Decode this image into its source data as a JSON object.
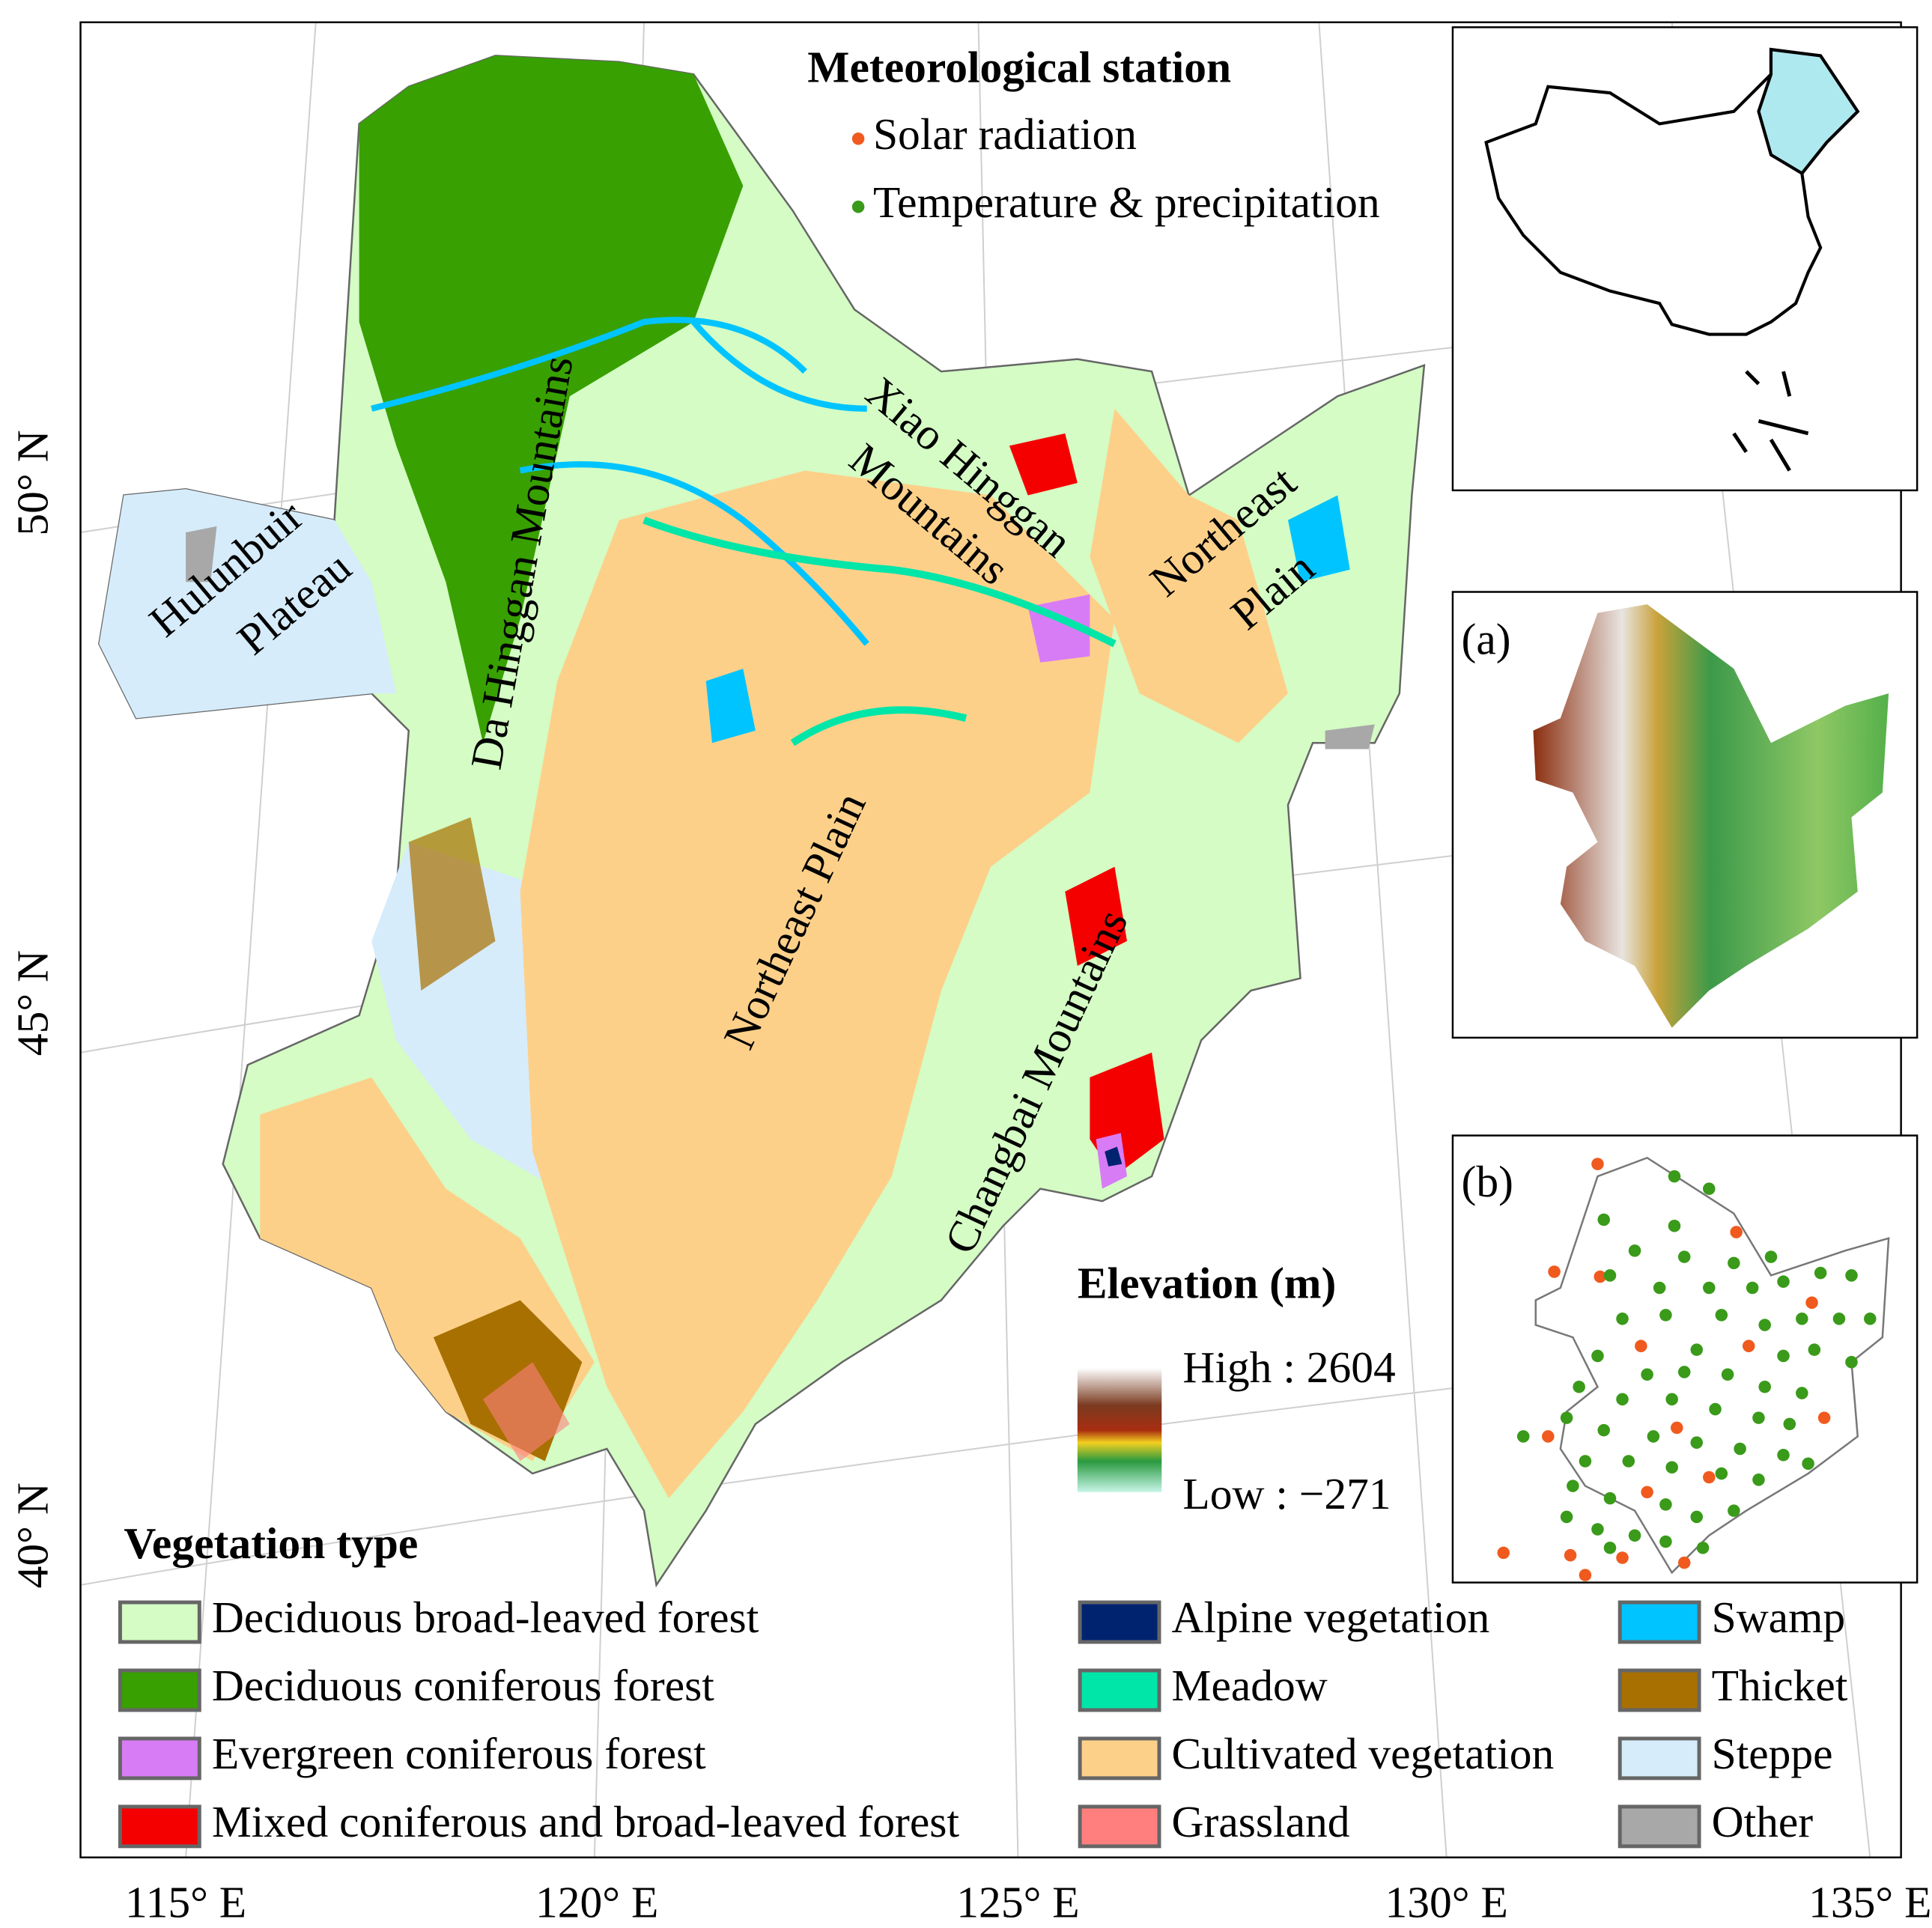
{
  "station_legend": {
    "title": "Meteorological station",
    "items": [
      {
        "label": "Solar radiation",
        "color": "#f05a1e"
      },
      {
        "label": "Temperature & precipitation",
        "color": "#3a9a1a"
      }
    ]
  },
  "region_labels": {
    "hulunbuir": [
      "Hulunbuir",
      "Plateau"
    ],
    "da_hinggan": "Da Hinggan Mountains",
    "xiao_hinggan": [
      "Xiao Hinggan",
      "Mountains"
    ],
    "northeast_plain_ne": [
      "Northeast",
      "Plain"
    ],
    "northeast_plain": "Northeast Plain",
    "changbai": "Changbai Mountains"
  },
  "vegetation_legend": {
    "title": "Vegetation type",
    "items": [
      {
        "label": "Deciduous broad-leaved forest",
        "color": "#d4fcc4"
      },
      {
        "label": "Deciduous coniferous forest",
        "color": "#38a000"
      },
      {
        "label": "Evergreen coniferous forest",
        "color": "#d87cf5"
      },
      {
        "label": "Mixed coniferous and broad-leaved forest",
        "color": "#f50000"
      },
      {
        "label": "Alpine vegetation",
        "color": "#002370"
      },
      {
        "label": "Meadow",
        "color": "#00e6a8"
      },
      {
        "label": "Cultivated vegetation",
        "color": "#fdd08a"
      },
      {
        "label": "Grassland",
        "color": "#ff7f7f"
      },
      {
        "label": "Swamp",
        "color": "#00c4ff"
      },
      {
        "label": "Thicket",
        "color": "#a87000"
      },
      {
        "label": "Steppe",
        "color": "#d6ecfb"
      },
      {
        "label": "Other",
        "color": "#a8a8a8"
      }
    ]
  },
  "elevation_legend": {
    "title": "Elevation (m)",
    "high": "High : 2604",
    "low": "Low : −271"
  },
  "panels": {
    "a": "(a)",
    "b": "(b)"
  },
  "axes": {
    "x_labels": [
      "115° E",
      "120° E",
      "125° E",
      "130° E",
      "135° E"
    ],
    "y_labels": [
      "50° N",
      "45° N",
      "40° N"
    ]
  }
}
